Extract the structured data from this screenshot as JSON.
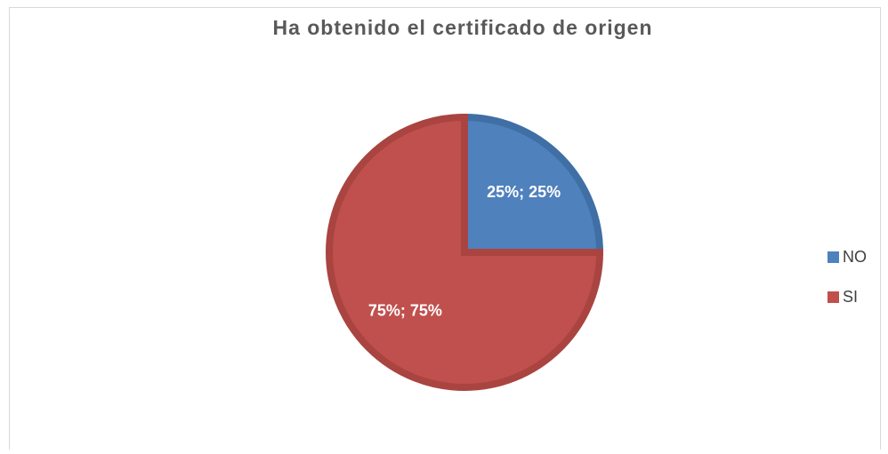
{
  "chart_data": {
    "type": "pie",
    "title": "Ha obtenido el certificado de origen",
    "categories": [
      "NO",
      "SI"
    ],
    "values": [
      25,
      75
    ],
    "value_labels": [
      "25%; 25%",
      "75%; 75%"
    ],
    "colors": [
      "#4f81bd",
      "#c0504d"
    ],
    "edge_colors": [
      "#3f6fa5",
      "#a94441"
    ],
    "legend": "right"
  }
}
